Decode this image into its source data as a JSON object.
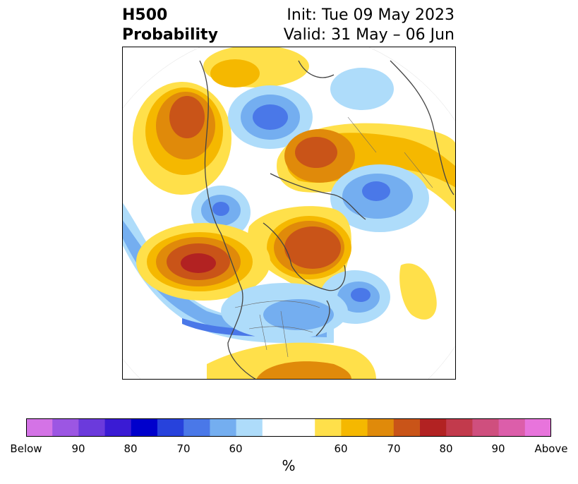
{
  "header": {
    "left_line1": "H500",
    "left_line2": "Probability",
    "right_line1": "Init: Tue 09 May 2023",
    "right_line2": "Valid: 31 May – 06 Jun"
  },
  "colorbar": {
    "unit_label": "%",
    "tick_labels": [
      "Below",
      "90",
      "80",
      "70",
      "60",
      "60",
      "70",
      "80",
      "90",
      "Above"
    ],
    "colors": [
      "#d473e6",
      "#9c56e3",
      "#6b3adc",
      "#3a1bd4",
      "#0000cc",
      "#2742dc",
      "#4a78e8",
      "#74aef0",
      "#aedcfa",
      "#ffffff",
      "#ffe04a",
      "#f5b800",
      "#e08a0a",
      "#c95418",
      "#b22222",
      "#c23a4c",
      "#cf4f7e",
      "#dc5eaa",
      "#e874dc"
    ]
  },
  "legend_colors": {
    "below": "#4a78e8",
    "above": "#c95418"
  }
}
